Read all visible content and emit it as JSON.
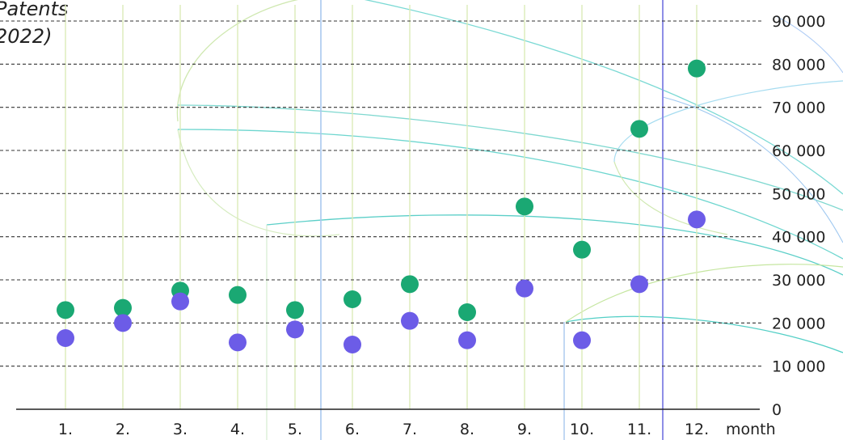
{
  "chart_data": {
    "type": "scatter",
    "title_lines": [
      "Patents",
      "2022)"
    ],
    "xlabel": "month",
    "ylabel": "",
    "x_categories": [
      "1.",
      "2.",
      "3.",
      "4.",
      "5.",
      "6.",
      "7.",
      "8.",
      "9.",
      "10.",
      "11.",
      "12."
    ],
    "y_ticks": [
      "0",
      "10 000",
      "20 000",
      "30 000",
      "40 000",
      "50 000",
      "60 000",
      "70 000",
      "80 000",
      "90 000"
    ],
    "ylim": [
      0,
      90000
    ],
    "grid": true,
    "series": [
      {
        "values": [
          23000,
          23500,
          27500,
          26500,
          23000,
          25500,
          29000,
          22500,
          47000,
          37000,
          65000,
          79000
        ],
        "color": "#1aa873"
      },
      {
        "values": [
          16500,
          20000,
          25000,
          15500,
          18500,
          15000,
          20500,
          16000,
          28000,
          16000,
          29000,
          44000
        ],
        "color": "#6c5ce7"
      }
    ]
  }
}
